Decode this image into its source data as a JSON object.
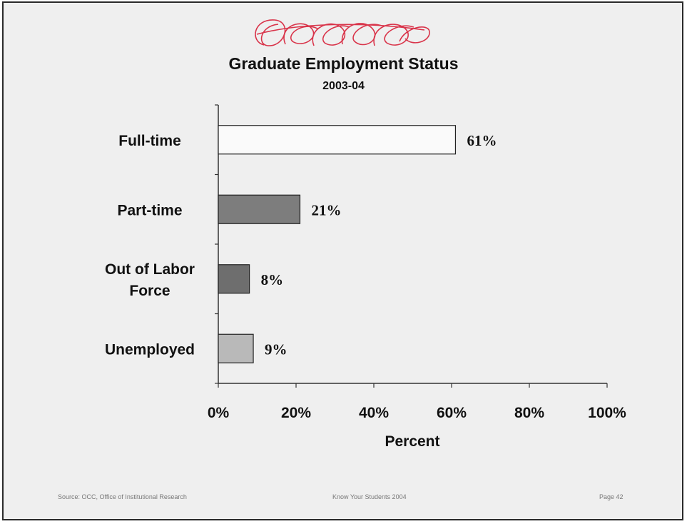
{
  "chart_data": {
    "type": "bar",
    "orientation": "horizontal",
    "title": "Graduate Employment Status",
    "subtitle": "2003-04",
    "categories": [
      "Full-time",
      "Part-time",
      "Out of Labor Force",
      "Unemployed"
    ],
    "category_lines": [
      [
        "Full-time"
      ],
      [
        "Part-time"
      ],
      [
        "Out of Labor",
        "Force"
      ],
      [
        "Unemployed"
      ]
    ],
    "values": [
      61,
      21,
      8,
      9
    ],
    "data_labels": [
      "61%",
      "21%",
      "8%",
      "9%"
    ],
    "bar_colors": [
      "#fafafa",
      "#7d7d7d",
      "#6e6e6e",
      "#b9b9b9"
    ],
    "xlabel": "Percent",
    "xlim": [
      0,
      100
    ],
    "xticks": [
      0,
      20,
      40,
      60,
      80,
      100
    ],
    "xtick_labels": [
      "0%",
      "20%",
      "40%",
      "60%",
      "80%",
      "100%"
    ],
    "grid": false,
    "legend": "none"
  },
  "footer": {
    "source": "Source: OCC, Office of Institutional Research",
    "center": "Know Your Students 2004",
    "page": "Page 42"
  }
}
